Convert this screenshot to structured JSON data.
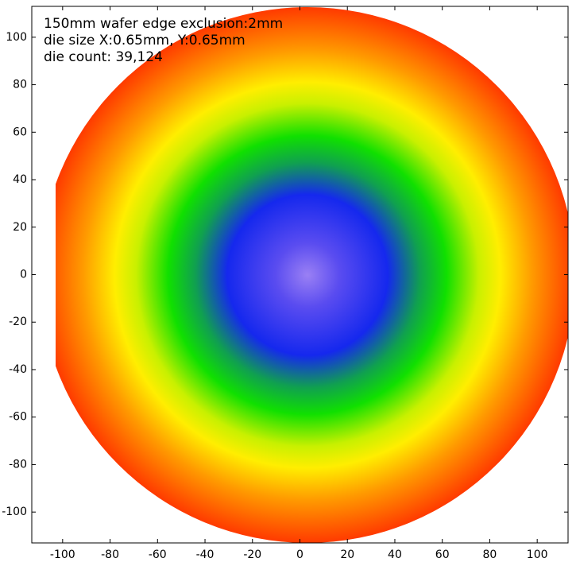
{
  "chart_data": {
    "type": "wafer-map",
    "annotations": [
      "150mm wafer edge exclusion:2mm",
      "die size X:0.65mm, Y:0.65mm",
      "die count: 39,124"
    ],
    "xlim": [
      -113,
      113
    ],
    "ylim": [
      -113,
      113
    ],
    "xticks": [
      -100,
      -80,
      -60,
      -40,
      -20,
      0,
      20,
      40,
      60,
      80,
      100
    ],
    "yticks": [
      -100,
      -80,
      -60,
      -40,
      -20,
      0,
      20,
      40,
      60,
      80,
      100
    ]
  }
}
